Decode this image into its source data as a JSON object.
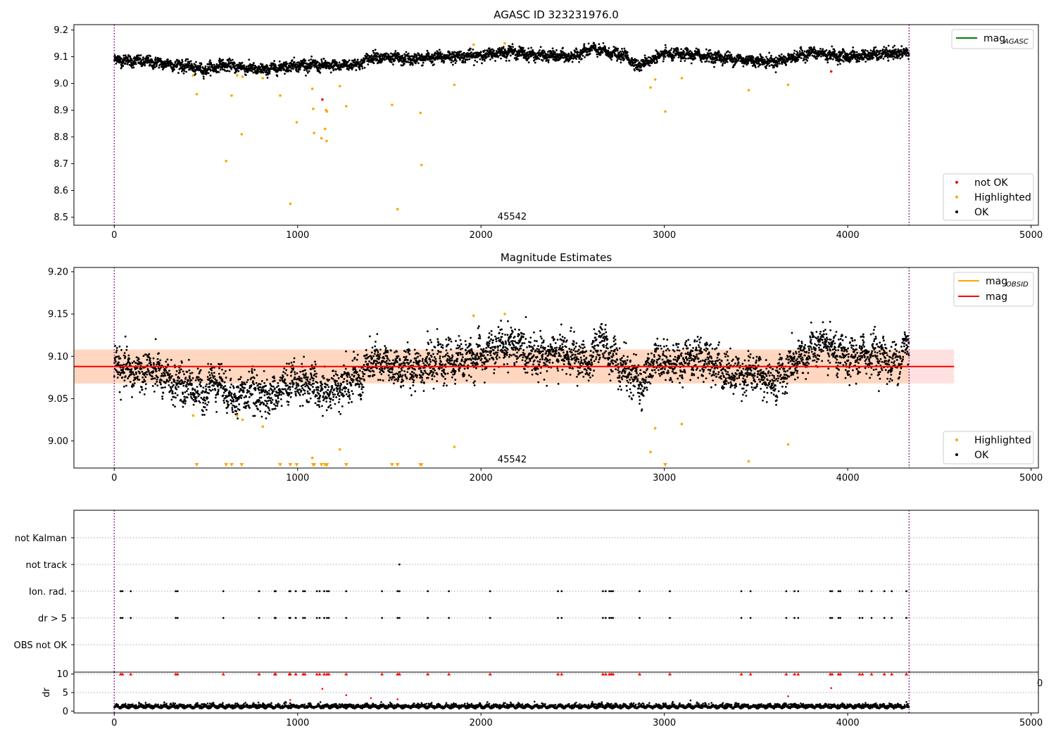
{
  "chart_data": [
    {
      "type": "scatter",
      "title": "AGASC ID 323231976.0",
      "annotation": "45542",
      "xlim": [
        -220,
        5040
      ],
      "ylim": [
        8.47,
        9.22
      ],
      "xticks": [
        0,
        1000,
        2000,
        3000,
        4000,
        5000
      ],
      "xtick_labels": [
        "0",
        "1000",
        "2000",
        "3000",
        "4000",
        "5000"
      ],
      "yticks": [
        8.5,
        8.6,
        8.7,
        8.8,
        8.9,
        9.0,
        9.1,
        9.2
      ],
      "ytick_labels": [
        "8.5",
        "8.6",
        "8.7",
        "8.8",
        "8.9",
        "9.0",
        "9.1",
        "9.2"
      ],
      "vlines": [
        0,
        4335
      ],
      "line_legend": [
        {
          "label": "mag",
          "sub": "AGASC",
          "color": "#008000"
        }
      ],
      "scatter_legend": [
        {
          "label": "not OK",
          "color": "#ff0000"
        },
        {
          "label": "Highlighted",
          "color": "#ffa500"
        },
        {
          "label": "OK",
          "color": "#000000"
        }
      ],
      "ok_series": {
        "baseline": [
          [
            0,
            9.09
          ],
          [
            200,
            9.08
          ],
          [
            400,
            9.065
          ],
          [
            480,
            9.05
          ],
          [
            600,
            9.07
          ],
          [
            800,
            9.05
          ],
          [
            1000,
            9.07
          ],
          [
            1200,
            9.065
          ],
          [
            1350,
            9.075
          ],
          [
            1400,
            9.1
          ],
          [
            1600,
            9.09
          ],
          [
            1800,
            9.1
          ],
          [
            2000,
            9.105
          ],
          [
            2150,
            9.12
          ],
          [
            2300,
            9.105
          ],
          [
            2500,
            9.1
          ],
          [
            2600,
            9.13
          ],
          [
            2800,
            9.1
          ],
          [
            2850,
            9.065
          ],
          [
            3000,
            9.11
          ],
          [
            3200,
            9.105
          ],
          [
            3400,
            9.09
          ],
          [
            3600,
            9.08
          ],
          [
            3800,
            9.115
          ],
          [
            4000,
            9.1
          ],
          [
            4200,
            9.11
          ],
          [
            4335,
            9.115
          ]
        ],
        "n": 4335,
        "spread": 0.01
      },
      "highlighted": [
        [
          430,
          9.03
        ],
        [
          450,
          8.96
        ],
        [
          610,
          8.71
        ],
        [
          640,
          8.955
        ],
        [
          670,
          9.03
        ],
        [
          695,
          8.81
        ],
        [
          700,
          9.025
        ],
        [
          810,
          9.02
        ],
        [
          905,
          8.955
        ],
        [
          960,
          8.55
        ],
        [
          995,
          8.855
        ],
        [
          1080,
          8.98
        ],
        [
          1085,
          8.905
        ],
        [
          1090,
          8.815
        ],
        [
          1130,
          8.795
        ],
        [
          1150,
          8.83
        ],
        [
          1155,
          8.9
        ],
        [
          1158,
          8.785
        ],
        [
          1160,
          8.895
        ],
        [
          1230,
          8.99
        ],
        [
          1265,
          8.915
        ],
        [
          1515,
          8.92
        ],
        [
          1545,
          8.53
        ],
        [
          1670,
          8.89
        ],
        [
          1675,
          8.695
        ],
        [
          1855,
          8.995
        ],
        [
          1960,
          9.145
        ],
        [
          2130,
          9.15
        ],
        [
          2925,
          8.985
        ],
        [
          2950,
          9.015
        ],
        [
          3005,
          8.895
        ],
        [
          3095,
          9.02
        ],
        [
          3460,
          8.975
        ],
        [
          3675,
          8.995
        ]
      ],
      "not_ok": [
        [
          1135,
          8.94
        ],
        [
          3910,
          9.045
        ]
      ]
    },
    {
      "type": "scatter",
      "title": "Magnitude Estimates",
      "annotation": "45542",
      "xlim": [
        -220,
        5040
      ],
      "ylim": [
        8.968,
        9.205
      ],
      "xticks": [
        0,
        1000,
        2000,
        3000,
        4000,
        5000
      ],
      "xtick_labels": [
        "0",
        "1000",
        "2000",
        "3000",
        "4000",
        "5000"
      ],
      "yticks": [
        9.0,
        9.05,
        9.1,
        9.15,
        9.2
      ],
      "ytick_labels": [
        "9.00",
        "9.05",
        "9.10",
        "9.15",
        "9.20"
      ],
      "vlines": [
        0,
        4335
      ],
      "mag": 9.088,
      "band_mag": [
        9.068,
        9.108
      ],
      "band_obsid": [
        9.068,
        9.108
      ],
      "band_mag_x": [
        -220,
        4580
      ],
      "band_obsid_x": [
        -220,
        4335
      ],
      "line_legend": [
        {
          "label": "mag",
          "sub": "OBSID",
          "color": "#ffa500"
        },
        {
          "label": "mag",
          "sub": "",
          "color": "#ff0000"
        }
      ],
      "scatter_legend": [
        {
          "label": "Highlighted",
          "color": "#ffa500"
        },
        {
          "label": "OK",
          "color": "#000000"
        }
      ],
      "ok_series": {
        "baseline": [
          [
            0,
            9.09
          ],
          [
            100,
            9.08
          ],
          [
            200,
            9.085
          ],
          [
            300,
            9.07
          ],
          [
            420,
            9.065
          ],
          [
            480,
            9.055
          ],
          [
            550,
            9.075
          ],
          [
            650,
            9.05
          ],
          [
            750,
            9.06
          ],
          [
            850,
            9.05
          ],
          [
            950,
            9.07
          ],
          [
            1050,
            9.07
          ],
          [
            1150,
            9.055
          ],
          [
            1250,
            9.07
          ],
          [
            1350,
            9.075
          ],
          [
            1400,
            9.095
          ],
          [
            1550,
            9.085
          ],
          [
            1700,
            9.09
          ],
          [
            1850,
            9.095
          ],
          [
            2000,
            9.1
          ],
          [
            2150,
            9.115
          ],
          [
            2300,
            9.1
          ],
          [
            2450,
            9.105
          ],
          [
            2600,
            9.09
          ],
          [
            2650,
            9.12
          ],
          [
            2750,
            9.09
          ],
          [
            2880,
            9.065
          ],
          [
            2950,
            9.1
          ],
          [
            3050,
            9.09
          ],
          [
            3150,
            9.1
          ],
          [
            3250,
            9.095
          ],
          [
            3350,
            9.08
          ],
          [
            3500,
            9.08
          ],
          [
            3600,
            9.07
          ],
          [
            3700,
            9.09
          ],
          [
            3850,
            9.115
          ],
          [
            4000,
            9.095
          ],
          [
            4150,
            9.105
          ],
          [
            4250,
            9.09
          ],
          [
            4335,
            9.115
          ]
        ],
        "n": 4335,
        "spread": 0.011
      },
      "highlighted": [
        [
          430,
          9.03
        ],
        [
          670,
          9.03
        ],
        [
          700,
          9.025
        ],
        [
          810,
          9.017
        ],
        [
          1080,
          8.98
        ],
        [
          1230,
          8.99
        ],
        [
          1855,
          8.993
        ],
        [
          1960,
          9.148
        ],
        [
          2130,
          9.15
        ],
        [
          2925,
          8.987
        ],
        [
          2950,
          9.015
        ],
        [
          3095,
          9.02
        ],
        [
          3460,
          8.976
        ],
        [
          3675,
          8.996
        ]
      ],
      "offscale_x": [
        450,
        610,
        640,
        695,
        905,
        960,
        995,
        1085,
        1090,
        1130,
        1150,
        1158,
        1160,
        1265,
        1515,
        1545,
        1670,
        1675,
        3005
      ]
    },
    {
      "type": "scatter",
      "title": "",
      "xlim": [
        -220,
        5040
      ],
      "categories": [
        "not Kalman",
        "not track",
        "Ion. rad.",
        "dr > 5",
        "OBS not OK"
      ],
      "vlines": [
        0,
        4335
      ],
      "ion_rad_x": [
        35,
        45,
        90,
        335,
        345,
        595,
        790,
        875,
        880,
        955,
        960,
        990,
        1030,
        1040,
        1105,
        1120,
        1145,
        1160,
        1170,
        1265,
        1460,
        1545,
        1555,
        1710,
        1825,
        2050,
        2420,
        2440,
        2665,
        2680,
        2700,
        2710,
        2720,
        2865,
        3030,
        3420,
        3470,
        3665,
        3710,
        3730,
        3905,
        3915,
        3950,
        3960,
        4065,
        4080,
        4130,
        4200,
        4240,
        4320
      ],
      "dr_gt_5_x": [
        35,
        45,
        90,
        335,
        345,
        595,
        790,
        875,
        880,
        955,
        960,
        990,
        1030,
        1040,
        1105,
        1120,
        1145,
        1160,
        1170,
        1265,
        1460,
        1545,
        1555,
        1710,
        1825,
        2050,
        2420,
        2440,
        2665,
        2680,
        2700,
        2710,
        2720,
        2865,
        3030,
        3420,
        3470,
        3665,
        3710,
        3730,
        3905,
        3915,
        3950,
        3960,
        4065,
        4080,
        4130,
        4200,
        4240,
        4320
      ],
      "not_track_x": [
        1555
      ]
    },
    {
      "type": "scatter",
      "title": "",
      "ylabel": "dr",
      "xlim": [
        -220,
        5040
      ],
      "ylim": [
        -0.5,
        10.5
      ],
      "xticks": [
        0,
        1000,
        2000,
        3000,
        4000,
        5000
      ],
      "xtick_labels": [
        "0",
        "1000",
        "2000",
        "3000",
        "4000",
        "5000"
      ],
      "yticks": [
        0,
        5,
        10
      ],
      "ytick_labels": [
        "0",
        "5",
        "10"
      ],
      "clipped_tick_label": "0",
      "vlines": [
        0,
        4335
      ],
      "offscale_x": [
        35,
        45,
        90,
        335,
        345,
        595,
        790,
        875,
        880,
        955,
        960,
        990,
        1030,
        1040,
        1105,
        1120,
        1145,
        1160,
        1170,
        1265,
        1460,
        1545,
        1555,
        1710,
        1825,
        2050,
        2420,
        2440,
        2665,
        2680,
        2700,
        2710,
        2720,
        2865,
        3030,
        3420,
        3470,
        3665,
        3710,
        3730,
        3905,
        3915,
        3950,
        3960,
        4065,
        4080,
        4130,
        4200,
        4240,
        4320
      ],
      "outliers": [
        [
          1135,
          6.0
        ],
        [
          1265,
          4.3
        ],
        [
          1400,
          3.5
        ],
        [
          960,
          3.0
        ],
        [
          1545,
          3.2
        ],
        [
          3675,
          4.0
        ],
        [
          3910,
          6.2
        ]
      ],
      "ok_series": {
        "n": 4335,
        "base": 1.1,
        "spread": 0.45
      }
    }
  ]
}
